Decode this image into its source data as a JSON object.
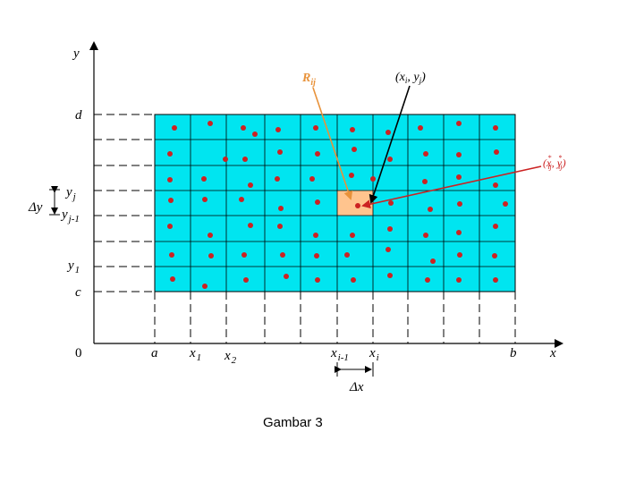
{
  "labels": {
    "y_axis": "y",
    "x_axis": "x",
    "d": "d",
    "c": "c",
    "zero": "0",
    "a": "a",
    "b": "b",
    "delta_y": "Δy",
    "delta_x": "Δx",
    "yj": "y",
    "yj_sub": "j",
    "yj1": "y",
    "yj1_sub": "j-1",
    "y1": "y",
    "y1_sub": "1",
    "x1": "x",
    "x1_sub": "1",
    "x2": "x",
    "x2_sub": "2",
    "xi1": "x",
    "xi1_sub": "i-1",
    "xi": "x",
    "xi_sub": "i",
    "rij": "R",
    "rij_sub": "ij",
    "xiyj": "(x",
    "xiyj_sub_i": "i",
    "xiyj_mid": ", y",
    "xiyj_sub_j": "j",
    "xiyj_end": ")",
    "star_point": "(x",
    "star_sub1": "ij",
    "star_mid": ", y",
    "star_sub2": "ij",
    "star_end": ")",
    "caption": "Gambar 3"
  },
  "colors": {
    "grid_fill": "#00e5f0",
    "highlight_fill": "#ffc48e",
    "dot": "#cc2222",
    "rij_arrow": "#e8923a",
    "star_arrow": "#cc2222",
    "axis": "#000000"
  }
}
